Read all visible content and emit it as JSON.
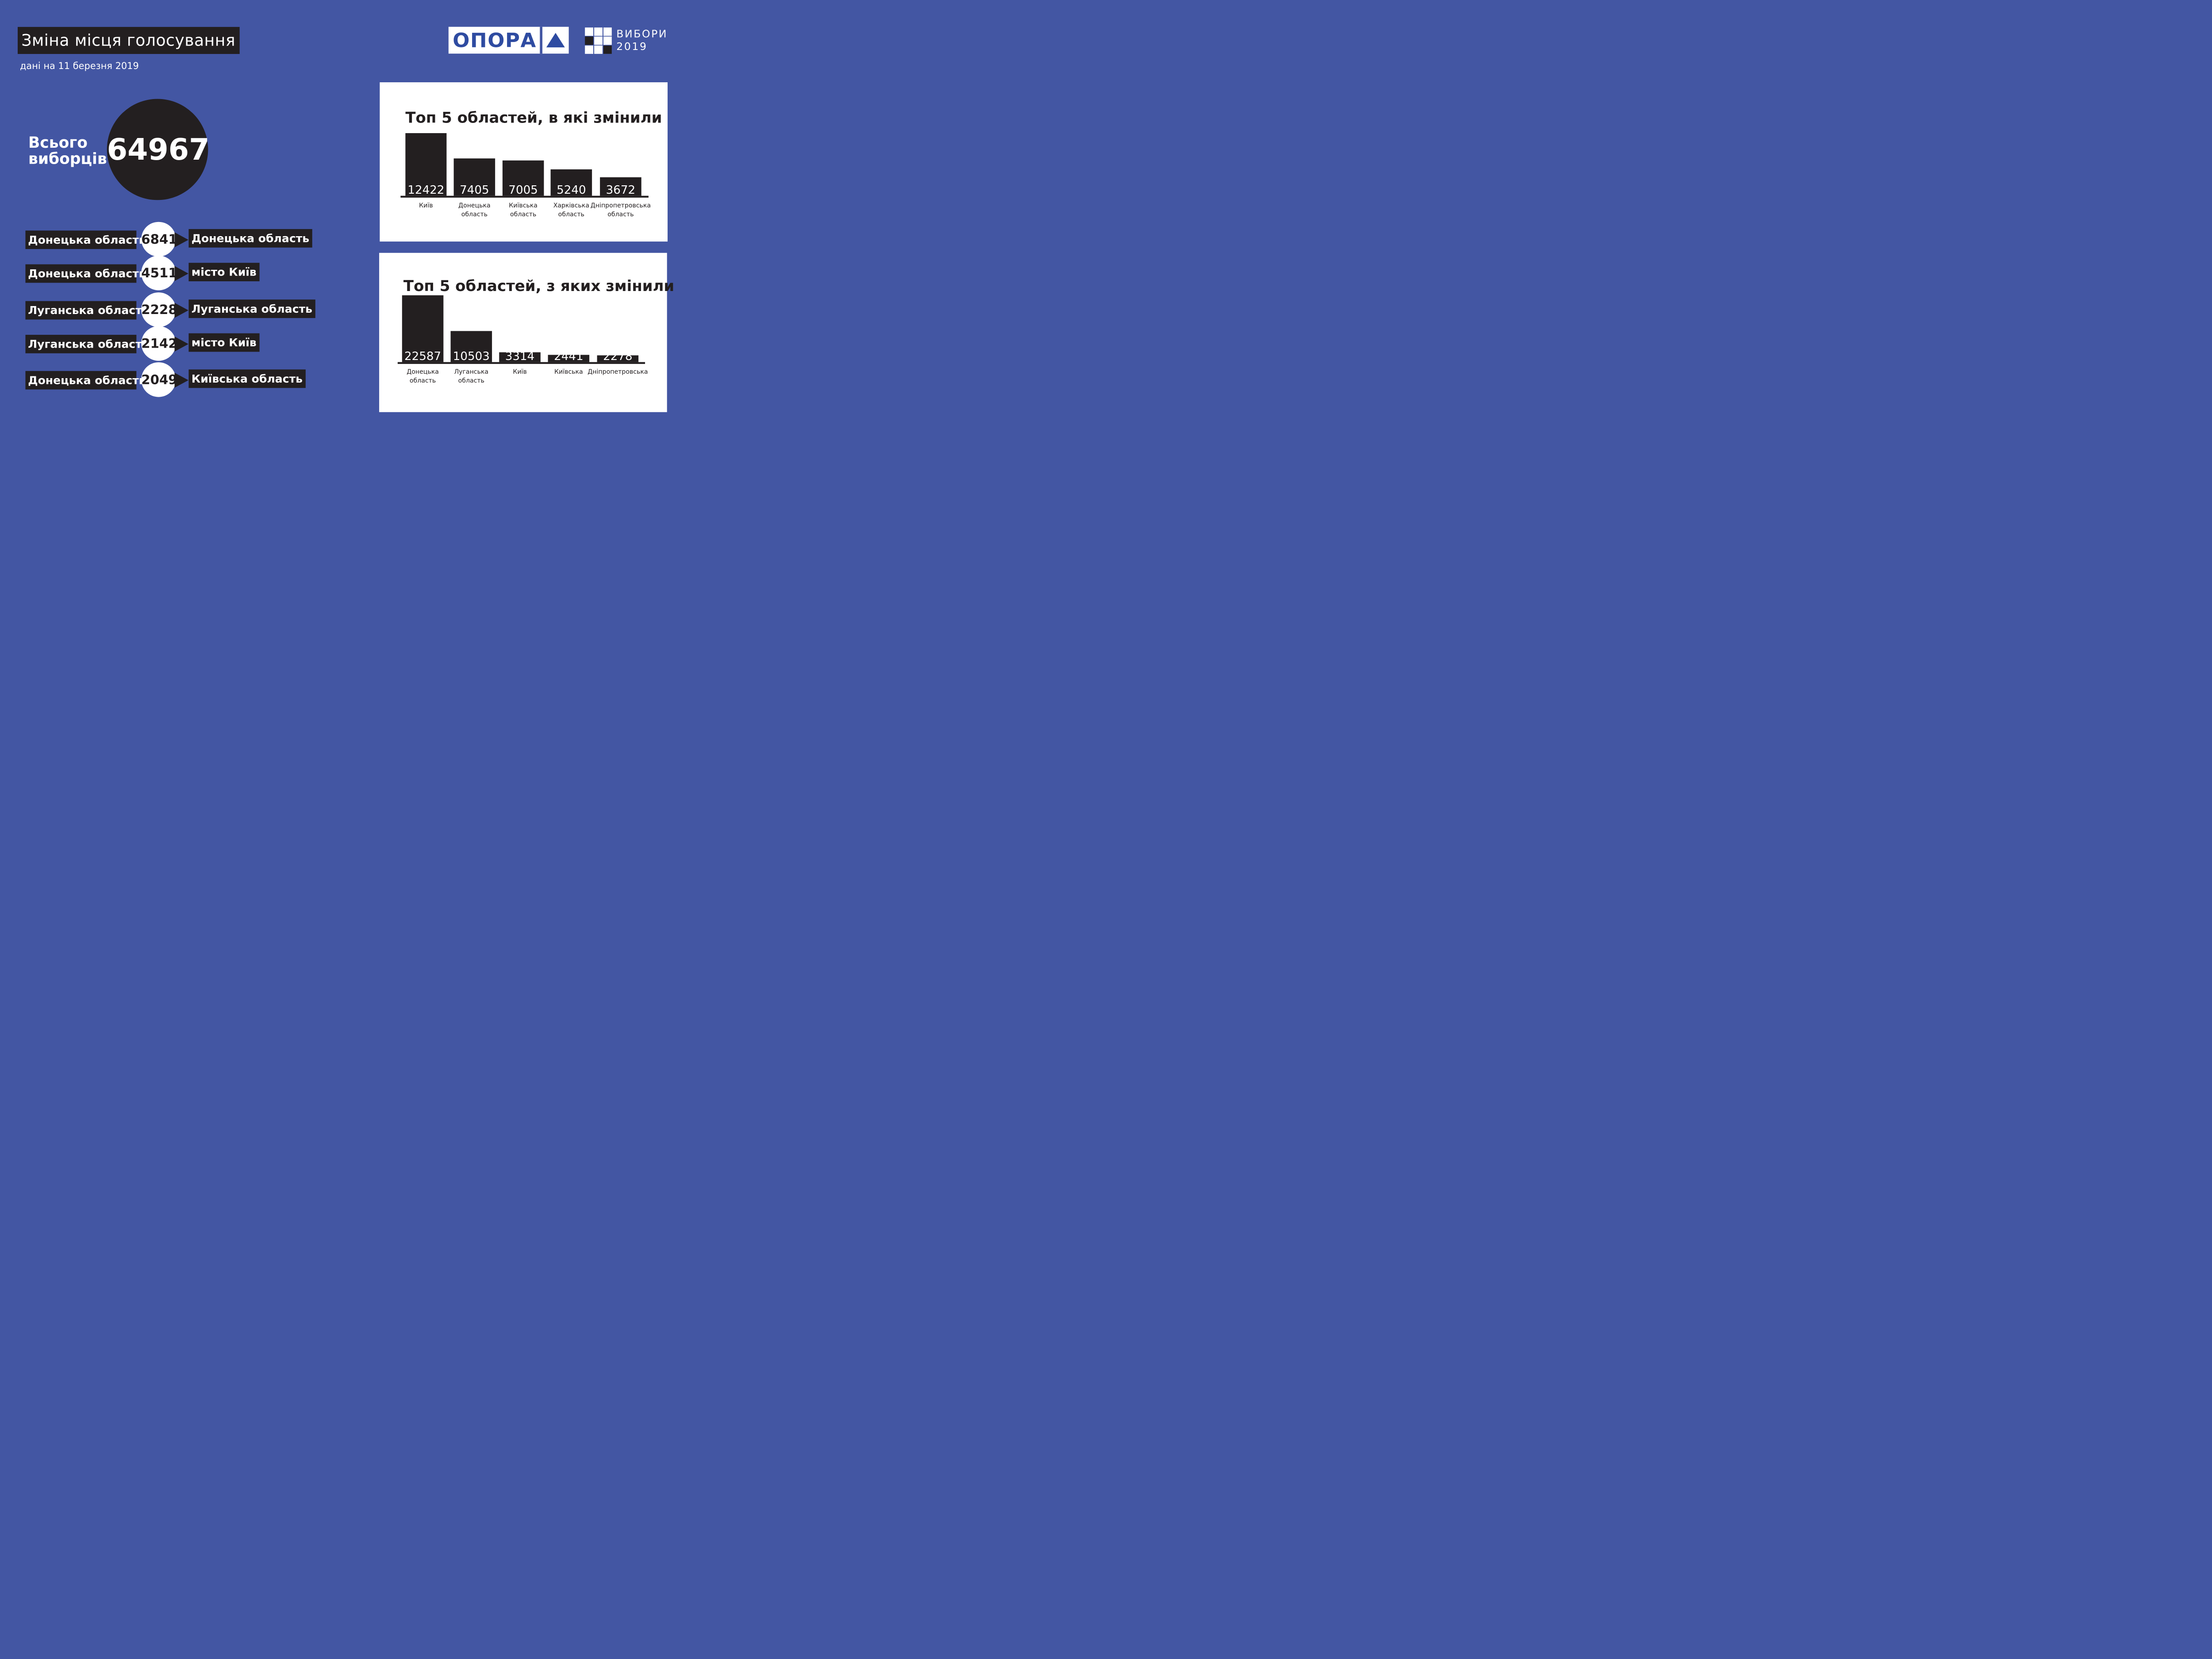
{
  "header": {
    "title": "Зміна місця голосування",
    "subtitle": "дані на 11 березня 2019"
  },
  "logos": {
    "opora": "ОПОРА",
    "vybory_line1": "ВИБОРИ",
    "vybory_line2": "2019",
    "opora_color": "#2e4ba1",
    "icons": [
      "triangle-icon",
      "grid-icon"
    ]
  },
  "total": {
    "label_line1": "Всього",
    "label_line2": "виборців",
    "value": "64967"
  },
  "flows": [
    {
      "from": "Донецька область",
      "value": "6841",
      "to": "Донецька область"
    },
    {
      "from": "Донецька область",
      "value": "4511",
      "to": "місто Київ"
    },
    {
      "from": "Луганська область",
      "value": "2228",
      "to": "Луганська область"
    },
    {
      "from": "Луганська область",
      "value": "2142",
      "to": "місто Київ"
    },
    {
      "from": "Донецька область",
      "value": "2049",
      "to": "Київська область"
    }
  ],
  "colors": {
    "background": "#4356a3",
    "dark": "#231f20",
    "white": "#ffffff"
  },
  "chart_data": [
    {
      "type": "bar",
      "title": "Топ 5 областей, в які змінили",
      "categories": [
        [
          "Київ"
        ],
        [
          "Донецька",
          "область"
        ],
        [
          "Київська",
          "область"
        ],
        [
          "Харківська",
          "область"
        ],
        [
          "Дніпропетровська",
          "область"
        ]
      ],
      "values": [
        12422,
        7405,
        7005,
        5240,
        3672
      ],
      "xlabel": "",
      "ylabel": "",
      "ylim": [
        0,
        12422
      ],
      "grid": false,
      "legend": "none"
    },
    {
      "type": "bar",
      "title": "Топ 5 областей, з яких змінили",
      "categories": [
        [
          "Донецька",
          "область"
        ],
        [
          "Луганська",
          "область"
        ],
        [
          "Київ"
        ],
        [
          "Київська"
        ],
        [
          "Дніпропетровська"
        ]
      ],
      "values": [
        22587,
        10503,
        3314,
        2441,
        2278
      ],
      "xlabel": "",
      "ylabel": "",
      "ylim": [
        0,
        22587
      ],
      "grid": false,
      "legend": "none"
    }
  ]
}
